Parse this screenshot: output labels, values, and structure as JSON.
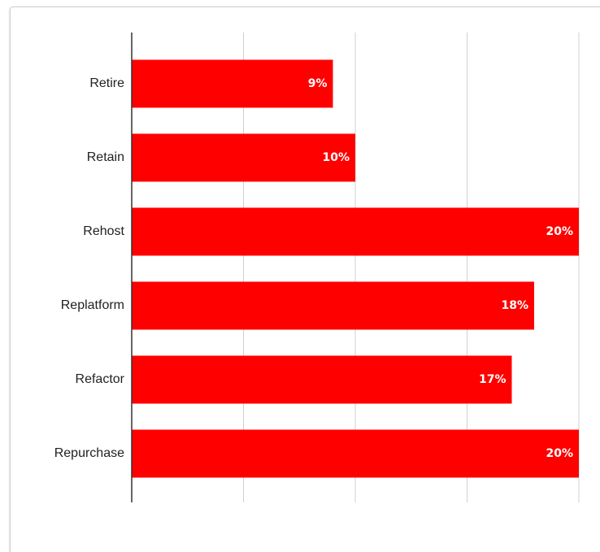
{
  "chart_data": {
    "type": "bar",
    "orientation": "horizontal",
    "categories": [
      "Retire",
      "Retain",
      "Rehost",
      "Replatform",
      "Refactor",
      "Repurchase"
    ],
    "values": [
      9,
      10,
      20,
      18,
      17,
      20
    ],
    "data_labels": [
      "9%",
      "10%",
      "20%",
      "18%",
      "17%",
      "20%"
    ],
    "xlim": [
      0,
      20
    ],
    "x_gridlines": [
      5,
      10,
      15,
      20
    ],
    "grid": true,
    "legend": "none",
    "title": "",
    "xlabel": "",
    "ylabel": "",
    "colors": {
      "bar": "#ff0000",
      "grid": "#d0d0d0",
      "axis": "#333333",
      "label_text": "#222222",
      "data_label_text": "#ffffff"
    }
  }
}
